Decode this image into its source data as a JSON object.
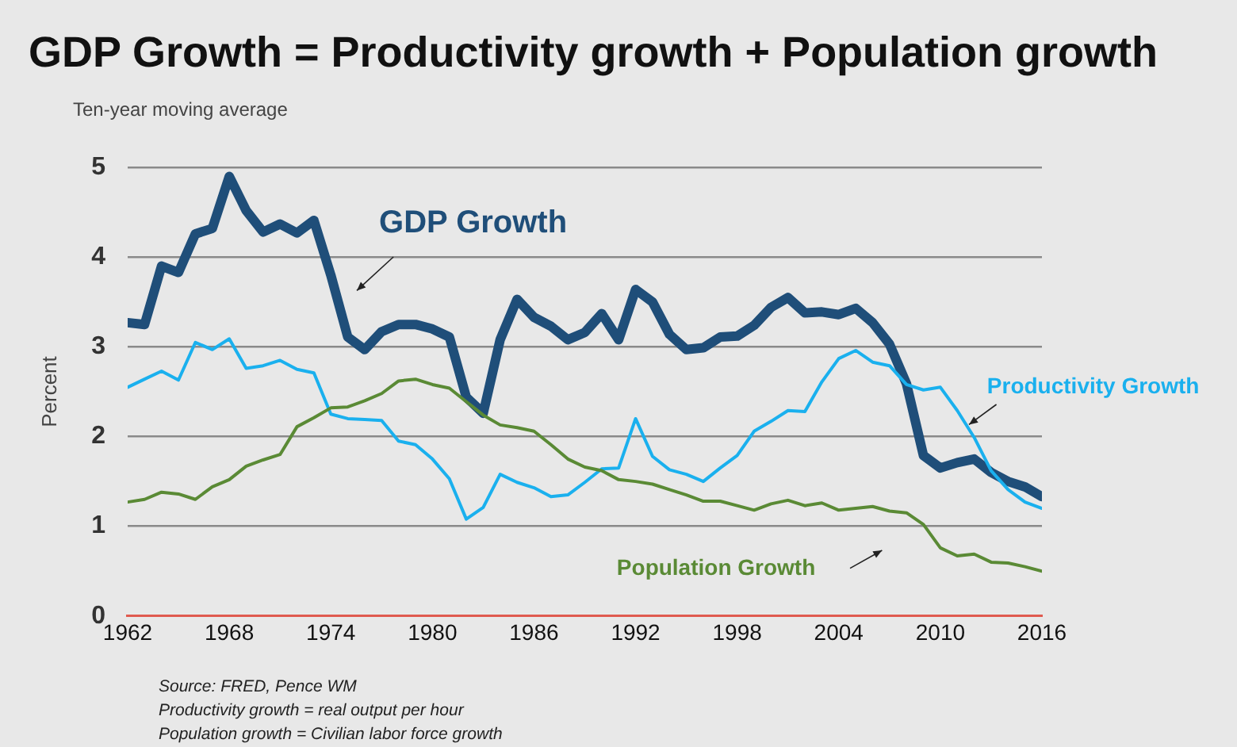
{
  "chart_data": {
    "type": "line",
    "title": "GDP Growth = Productivity growth + Population growth",
    "subtitle": "Ten-year moving average",
    "ylabel": "Percent",
    "x": [
      1962,
      1963,
      1964,
      1965,
      1966,
      1967,
      1968,
      1969,
      1970,
      1971,
      1972,
      1973,
      1974,
      1975,
      1976,
      1977,
      1978,
      1979,
      1980,
      1981,
      1982,
      1983,
      1984,
      1985,
      1986,
      1987,
      1988,
      1989,
      1990,
      1991,
      1992,
      1993,
      1994,
      1995,
      1996,
      1997,
      1998,
      1999,
      2000,
      2001,
      2002,
      2003,
      2004,
      2005,
      2006,
      2007,
      2008,
      2009,
      2010,
      2011,
      2012,
      2013,
      2014,
      2015,
      2016
    ],
    "series": [
      {
        "name": "GDP Growth",
        "color": "#1f4e79",
        "values": [
          3.27,
          3.25,
          3.9,
          3.83,
          4.26,
          4.32,
          4.9,
          4.52,
          4.28,
          4.37,
          4.27,
          4.41,
          3.8,
          3.11,
          2.97,
          3.17,
          3.25,
          3.25,
          3.2,
          3.11,
          2.44,
          2.26,
          3.08,
          3.53,
          3.33,
          3.23,
          3.08,
          3.16,
          3.37,
          3.08,
          3.64,
          3.5,
          3.14,
          2.97,
          2.99,
          3.11,
          3.12,
          3.24,
          3.44,
          3.55,
          3.38,
          3.39,
          3.36,
          3.43,
          3.27,
          3.03,
          2.59,
          1.79,
          1.65,
          1.71,
          1.75,
          1.6,
          1.5,
          1.44,
          1.33
        ]
      },
      {
        "name": "Productivity Growth",
        "color": "#1ab0ee",
        "values": [
          2.55,
          2.64,
          2.73,
          2.63,
          3.05,
          2.97,
          3.09,
          2.76,
          2.79,
          2.85,
          2.75,
          2.71,
          2.25,
          2.2,
          2.19,
          2.18,
          1.95,
          1.91,
          1.75,
          1.53,
          1.08,
          1.21,
          1.58,
          1.49,
          1.43,
          1.33,
          1.35,
          1.49,
          1.64,
          1.65,
          2.2,
          1.78,
          1.63,
          1.58,
          1.5,
          1.65,
          1.79,
          2.06,
          2.17,
          2.29,
          2.28,
          2.61,
          2.87,
          2.96,
          2.83,
          2.79,
          2.58,
          2.52,
          2.55,
          2.29,
          1.99,
          1.62,
          1.41,
          1.27,
          1.2
        ]
      },
      {
        "name": "Population Growth",
        "color": "#5a8a35",
        "values": [
          1.27,
          1.3,
          1.38,
          1.36,
          1.3,
          1.44,
          1.52,
          1.67,
          1.74,
          1.8,
          2.11,
          2.21,
          2.32,
          2.33,
          2.4,
          2.48,
          2.62,
          2.64,
          2.58,
          2.54,
          2.39,
          2.24,
          2.13,
          2.1,
          2.06,
          1.91,
          1.75,
          1.66,
          1.62,
          1.52,
          1.5,
          1.47,
          1.41,
          1.35,
          1.28,
          1.28,
          1.23,
          1.18,
          1.25,
          1.29,
          1.23,
          1.26,
          1.18,
          1.2,
          1.22,
          1.17,
          1.15,
          1.02,
          0.76,
          0.67,
          0.69,
          0.6,
          0.59,
          0.55,
          0.5
        ]
      }
    ],
    "xlim": [
      1962,
      2016
    ],
    "xticks": [
      1962,
      1968,
      1974,
      1980,
      1986,
      1992,
      1998,
      2004,
      2010,
      2016
    ],
    "ylim": [
      0,
      5
    ],
    "yticks": [
      0,
      1,
      2,
      3,
      4,
      5
    ],
    "grid": "y",
    "legend": false,
    "marker": "none",
    "line_style": "solid",
    "annotations": [
      "Source: FRED, Pence WM",
      "Productivity growth = real output per hour",
      "Population growth = Civilian labor force growth"
    ]
  }
}
